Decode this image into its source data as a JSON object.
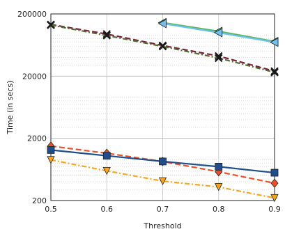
{
  "chart_data": {
    "type": "line",
    "title": "",
    "xlabel": "Threshold",
    "ylabel": "Time (in secs)",
    "x": [
      0.5,
      0.6,
      0.7,
      0.8,
      0.9
    ],
    "x_tick_labels": [
      "0.5",
      "0.6",
      "0.7",
      "0.8",
      "0.9"
    ],
    "xlim": [
      0.5,
      0.9
    ],
    "yscale": "log",
    "ylim": [
      200,
      200000
    ],
    "y_tick_values": [
      200,
      2000,
      20000,
      200000
    ],
    "y_tick_labels": [
      "200",
      "2000",
      "20000",
      "200000"
    ],
    "grid": "on (x gridlines, log-scale minor y gridlines)",
    "legend": "none",
    "series": [
      {
        "color": "#5cb85c",
        "line_style": "solid",
        "marker": "triangle-left",
        "values": [
          null,
          null,
          145000,
          105000,
          72000
        ]
      },
      {
        "color": "#6ec1f0",
        "line_style": "solid",
        "marker": "triangle-left",
        "values": [
          null,
          null,
          140000,
          100000,
          70000
        ]
      },
      {
        "color": "#7a1f3d",
        "line_style": "dashed",
        "marker": "x",
        "values": [
          135000,
          95000,
          62000,
          42000,
          24000
        ]
      },
      {
        "color": "#556b2f",
        "line_style": "dash-dot",
        "marker": "x",
        "values": [
          132000,
          90000,
          60000,
          39000,
          23000
        ]
      },
      {
        "color": "#e8502a",
        "line_style": "dashed",
        "marker": "diamond",
        "values": [
          1500,
          1150,
          850,
          580,
          380
        ]
      },
      {
        "color": "#1f4e8c",
        "line_style": "solid",
        "marker": "square",
        "values": [
          1300,
          1050,
          850,
          700,
          560
        ]
      },
      {
        "color": "#f5a623",
        "line_style": "dash-dot",
        "marker": "triangle-down",
        "values": [
          900,
          600,
          410,
          330,
          220
        ]
      }
    ]
  }
}
